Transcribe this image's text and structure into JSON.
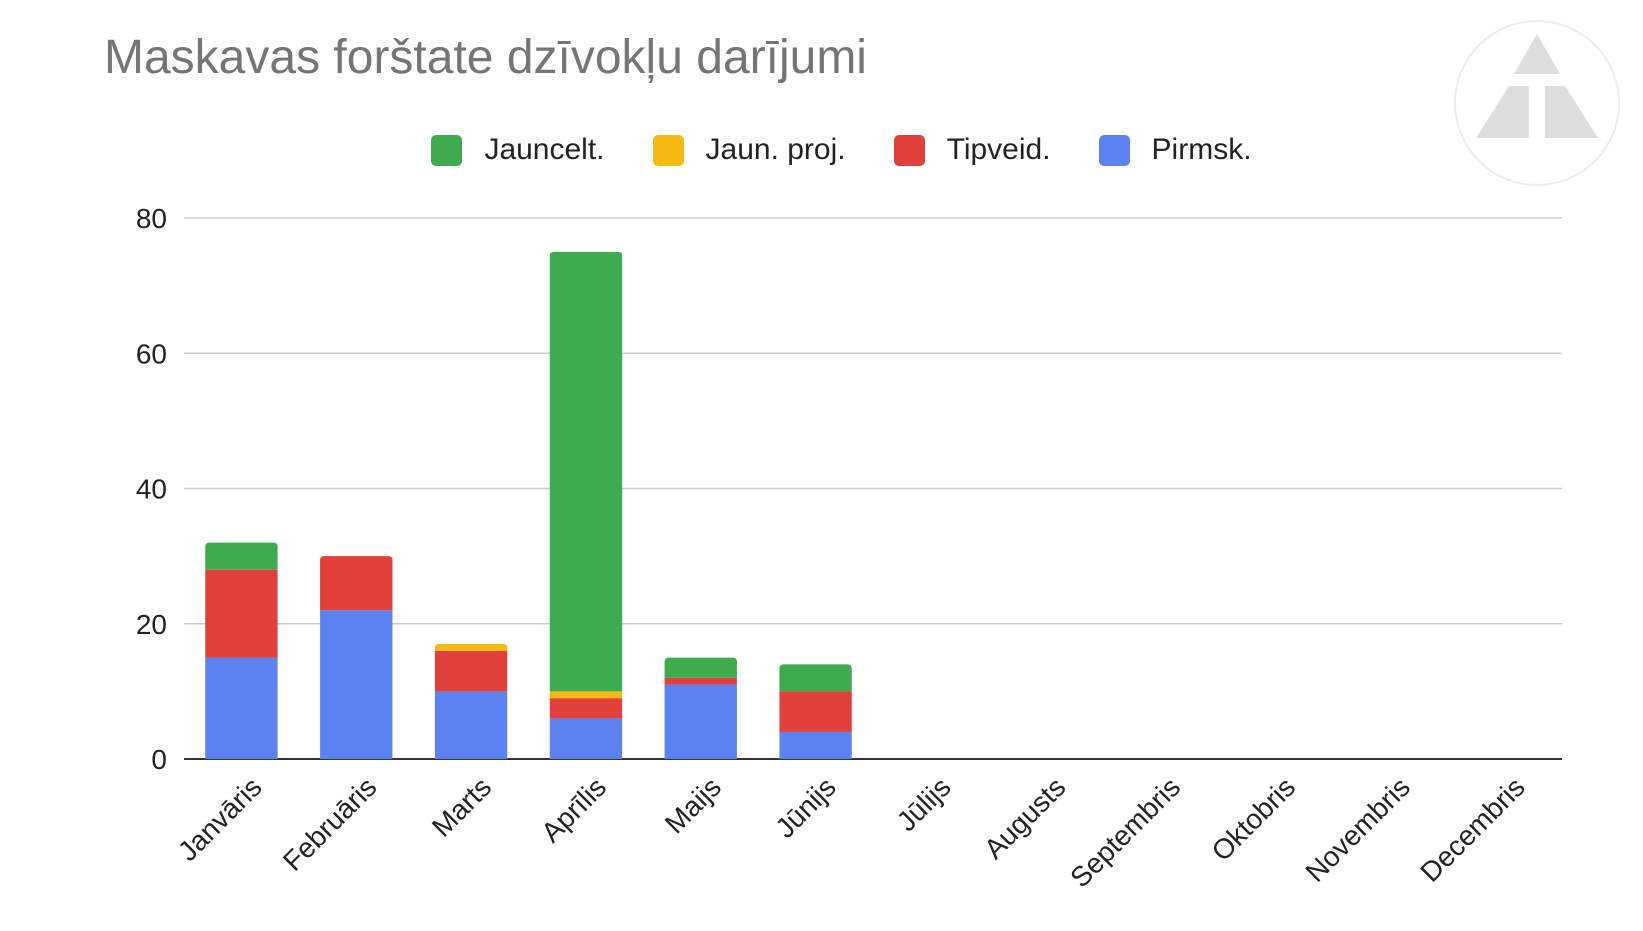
{
  "chart_data": {
    "type": "bar",
    "stacked": true,
    "title": "Maskavas forštate dzīvokļu darījumi",
    "xlabel": "",
    "ylabel": "",
    "ylim": [
      0,
      80
    ],
    "yticks": [
      0,
      20,
      40,
      60,
      80
    ],
    "grid": true,
    "legend_position": "top",
    "categories": [
      "Janvāris",
      "Februāris",
      "Marts",
      "Aprīlis",
      "Maijs",
      "Jūnijs",
      "Jūlijs",
      "Augusts",
      "Septembris",
      "Oktobris",
      "Novembris",
      "Decembris"
    ],
    "series": [
      {
        "name": "Pirmsk.",
        "color": "#5b82f0",
        "values": [
          15,
          22,
          10,
          6,
          11,
          4,
          0,
          0,
          0,
          0,
          0,
          0
        ]
      },
      {
        "name": "Tipveid.",
        "color": "#e2403a",
        "values": [
          13,
          8,
          6,
          3,
          1,
          6,
          0,
          0,
          0,
          0,
          0,
          0
        ]
      },
      {
        "name": "Jaun. proj.",
        "color": "#f6bb12",
        "values": [
          0,
          0,
          1,
          1,
          0,
          0,
          0,
          0,
          0,
          0,
          0,
          0
        ]
      },
      {
        "name": "Jauncelt.",
        "color": "#3fab4f",
        "values": [
          4,
          0,
          0,
          65,
          3,
          4,
          0,
          0,
          0,
          0,
          0,
          0
        ]
      }
    ],
    "legend_order": [
      3,
      2,
      1,
      0
    ]
  },
  "logo": {
    "icon": "triangle-logo-icon"
  }
}
